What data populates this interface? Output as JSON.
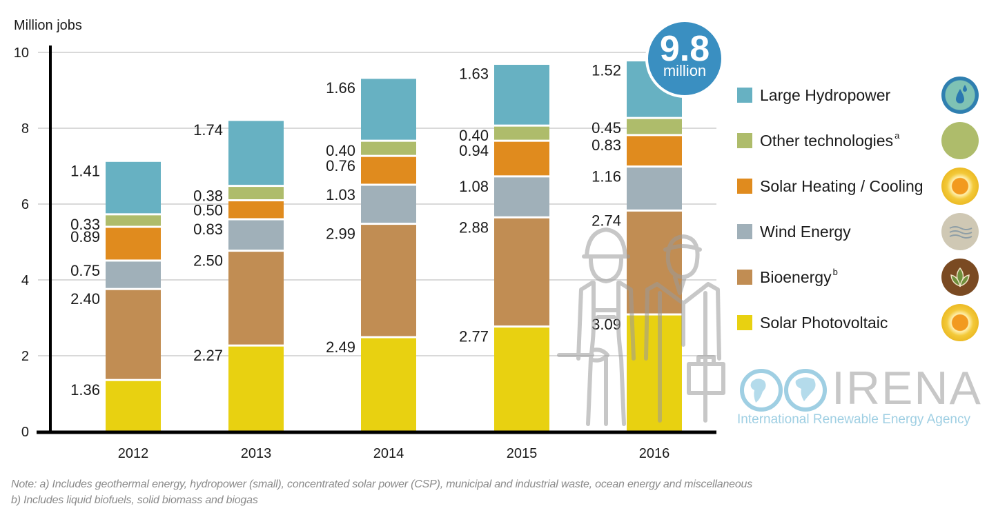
{
  "chart_data": {
    "type": "bar",
    "stacked": true,
    "title": "",
    "xlabel": "",
    "ylabel": "Million jobs",
    "ylim": [
      0,
      10
    ],
    "yticks": [
      0,
      2,
      4,
      6,
      8,
      10
    ],
    "grid": true,
    "categories": [
      "2012",
      "2013",
      "2014",
      "2015",
      "2016"
    ],
    "series": [
      {
        "name": "Solar Photovoltaic",
        "color": "#e8d111",
        "values": [
          1.36,
          2.27,
          2.49,
          2.77,
          3.09
        ],
        "labels": [
          "1.36",
          "2.27",
          "2.49",
          "2.77",
          "3.09"
        ]
      },
      {
        "name": "Bioenergy",
        "superscript": "b",
        "color": "#c18d53",
        "values": [
          2.4,
          2.5,
          2.99,
          2.88,
          2.74
        ],
        "labels": [
          "2.40",
          "2.50",
          "2.99",
          "2.88",
          "2.74"
        ]
      },
      {
        "name": "Wind Energy",
        "color": "#a0b0b9",
        "values": [
          0.75,
          0.83,
          1.03,
          1.08,
          1.16
        ],
        "labels": [
          "0.75",
          "0.83",
          "1.03",
          "1.08",
          "1.16"
        ]
      },
      {
        "name": "Solar Heating / Cooling",
        "color": "#e08b1e",
        "values": [
          0.89,
          0.5,
          0.76,
          0.94,
          0.83
        ],
        "labels": [
          "0.89",
          "0.50",
          "0.76",
          "0.94",
          "0.83"
        ]
      },
      {
        "name": "Other technologies",
        "superscript": "a",
        "color": "#aebc6b",
        "values": [
          0.33,
          0.38,
          0.4,
          0.4,
          0.45
        ],
        "labels": [
          "0.33",
          "0.38",
          "0.40",
          "0.40",
          "0.45"
        ]
      },
      {
        "name": "Large Hydropower",
        "color": "#67b1c2",
        "values": [
          1.41,
          1.74,
          1.66,
          1.63,
          1.52
        ],
        "labels": [
          "1.41",
          "1.74",
          "1.66",
          "1.63",
          "1.52"
        ]
      }
    ],
    "legend_position": "right",
    "legend_order": [
      "Large Hydropower",
      "Other technologies",
      "Solar Heating / Cooling",
      "Wind Energy",
      "Bioenergy",
      "Solar Photovoltaic"
    ],
    "annotations": [
      {
        "text": "9.8",
        "subtext": "million",
        "target": "2016",
        "color": "#3a8fc1"
      }
    ]
  },
  "legend": [
    {
      "label": "Large Hydropower",
      "sup": "",
      "color": "#67b1c2",
      "icon": "water-drop-icon"
    },
    {
      "label": "Other technologies",
      "sup": "a",
      "color": "#aebc6b",
      "icon": "green-circle-icon"
    },
    {
      "label": "Solar Heating / Cooling",
      "sup": "",
      "color": "#e08b1e",
      "icon": "sun-icon"
    },
    {
      "label": "Wind Energy",
      "sup": "",
      "color": "#a0b0b9",
      "icon": "wind-icon"
    },
    {
      "label": "Bioenergy",
      "sup": "b",
      "color": "#c18d53",
      "icon": "leaf-icon"
    },
    {
      "label": "Solar Photovoltaic",
      "sup": "",
      "color": "#e8d111",
      "icon": "sun-icon"
    }
  ],
  "badge": {
    "value": "9.8",
    "unit": "million"
  },
  "logo": {
    "name": "IRENA",
    "subtitle": "International Renewable Energy Agency"
  },
  "notes": [
    "Note: a) Includes geothermal energy, hydropower (small), concentrated solar power (CSP), municipal and industrial waste, ocean energy and miscellaneous",
    "b) Includes liquid biofuels, solid biomass and biogas"
  ]
}
